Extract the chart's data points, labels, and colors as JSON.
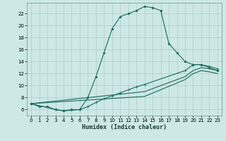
{
  "title": "",
  "xlabel": "Humidex (Indice chaleur)",
  "background_color": "#cde8e5",
  "grid_color": "#aacfcc",
  "line_color": "#1a6b5a",
  "xlim": [
    -0.5,
    23.5
  ],
  "ylim": [
    5.0,
    23.8
  ],
  "xticks": [
    0,
    1,
    2,
    3,
    4,
    5,
    6,
    7,
    8,
    9,
    10,
    11,
    12,
    13,
    14,
    15,
    16,
    17,
    18,
    19,
    20,
    21,
    22,
    23
  ],
  "yticks": [
    6,
    8,
    10,
    12,
    14,
    16,
    18,
    20,
    22
  ],
  "line1_x": [
    0,
    1,
    2,
    3,
    4,
    5,
    6,
    7,
    8,
    9,
    10,
    11,
    12,
    13,
    14,
    15,
    16,
    17,
    18,
    19,
    20,
    21,
    22,
    23
  ],
  "line1_y": [
    7.0,
    6.5,
    6.5,
    6.0,
    5.8,
    6.0,
    6.0,
    8.0,
    11.5,
    15.5,
    19.5,
    21.5,
    22.0,
    22.5,
    23.2,
    23.0,
    22.5,
    17.0,
    15.5,
    14.0,
    13.5,
    13.5,
    13.0,
    12.5
  ],
  "line2_x": [
    0,
    3,
    4,
    5,
    6,
    7,
    8,
    9,
    10,
    11,
    12,
    13,
    14,
    19,
    20,
    21,
    22,
    23
  ],
  "line2_y": [
    7.0,
    6.0,
    5.8,
    5.9,
    6.0,
    6.5,
    7.2,
    7.8,
    8.3,
    8.8,
    9.3,
    9.8,
    10.2,
    12.5,
    13.5,
    13.5,
    13.2,
    12.8
  ],
  "line3_x": [
    0,
    14,
    19,
    20,
    21,
    22,
    23
  ],
  "line3_y": [
    7.0,
    9.0,
    11.5,
    12.5,
    13.0,
    12.8,
    12.5
  ],
  "line4_x": [
    0,
    14,
    19,
    20,
    21,
    22,
    23
  ],
  "line4_y": [
    7.0,
    8.2,
    11.0,
    12.0,
    12.5,
    12.3,
    12.0
  ]
}
